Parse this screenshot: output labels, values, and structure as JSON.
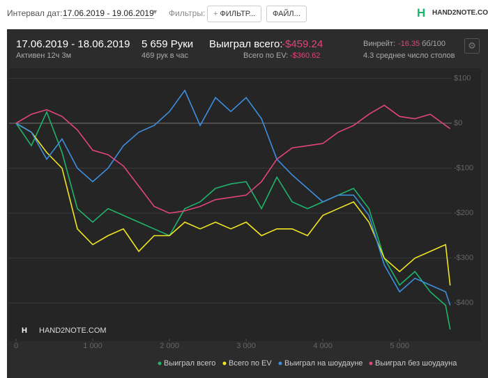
{
  "header": {
    "date_label": "Интервал дат:",
    "date_range": "17.06.2019 - 19.06.2019",
    "filters_label": "Фильтры:",
    "filter_button": "ФИЛЬТР...",
    "file_button": "ФАЙЛ...",
    "logo": "HAND2NOTE.COM"
  },
  "summary": {
    "period": "17.06.2019 - 18.06.2019",
    "active": "Активен 12ч 3м",
    "hands": "5 659 Руки",
    "hands_per_hour": "469 рук в час",
    "won_label": "Выиграл всего:",
    "won_value": "-$459.24",
    "ev_label": "Всего по EV:",
    "ev_value": "-$360.62",
    "winrate_label": "Винрейт:",
    "winrate_value": "-16.35",
    "winrate_unit": "бб/100",
    "tables": "4.3 среднее число столов"
  },
  "watermark": "HAND2NOTE.COM",
  "chart_data": {
    "type": "line",
    "x": [
      0,
      200,
      400,
      600,
      800,
      1000,
      1200,
      1400,
      1600,
      1800,
      2000,
      2200,
      2400,
      2600,
      2800,
      3000,
      3200,
      3400,
      3600,
      3800,
      4000,
      4200,
      4400,
      4600,
      4800,
      5000,
      5200,
      5400,
      5600,
      5659
    ],
    "series": [
      {
        "name": "Выиграл всего",
        "color": "#1fb46c",
        "values": [
          0,
          -50,
          25,
          -65,
          -190,
          -220,
          -190,
          -205,
          -220,
          -235,
          -250,
          -190,
          -175,
          -145,
          -135,
          -130,
          -190,
          -120,
          -175,
          -190,
          -175,
          -160,
          -145,
          -190,
          -300,
          -360,
          -330,
          -375,
          -405,
          -459
        ]
      },
      {
        "name": "Всего по EV",
        "color": "#f0e622",
        "values": [
          0,
          -20,
          -65,
          -100,
          -235,
          -270,
          -250,
          -235,
          -285,
          -250,
          -250,
          -220,
          -235,
          -220,
          -235,
          -220,
          -250,
          -235,
          -235,
          -250,
          -205,
          -190,
          -175,
          -220,
          -300,
          -330,
          -300,
          -285,
          -270,
          -361
        ]
      },
      {
        "name": "Выиграл на шоудауне",
        "color": "#3d8fdf",
        "values": [
          0,
          -20,
          -80,
          -35,
          -100,
          -130,
          -100,
          -50,
          -20,
          -5,
          26,
          73,
          -5,
          57,
          26,
          57,
          10,
          -80,
          -115,
          -145,
          -175,
          -160,
          -160,
          -205,
          -315,
          -375,
          -345,
          -360,
          -375,
          -405
        ]
      },
      {
        "name": "Выиграл без шоудауна",
        "color": "#e2457d",
        "values": [
          0,
          20,
          30,
          15,
          -15,
          -60,
          -70,
          -95,
          -140,
          -185,
          -200,
          -195,
          -185,
          -170,
          -165,
          -160,
          -130,
          -80,
          -55,
          -50,
          -45,
          -20,
          -5,
          20,
          40,
          15,
          10,
          20,
          -5,
          -12
        ]
      }
    ],
    "xlim": [
      0,
      5680
    ],
    "ylim": [
      -480,
      120
    ],
    "xticks": [
      0,
      {
        "value": 1000,
        "label": "1 000"
      },
      {
        "value": 2000,
        "label": "2 000"
      },
      {
        "value": 3000,
        "label": "3 000"
      },
      {
        "value": 4000,
        "label": "4 000"
      },
      {
        "value": 5000,
        "label": "5 000"
      }
    ],
    "yticks": [
      {
        "value": 100,
        "label": "$100"
      },
      {
        "value": 0,
        "label": "$0"
      },
      {
        "value": -100,
        "label": "-$100"
      },
      {
        "value": -200,
        "label": "-$200"
      },
      {
        "value": -300,
        "label": "-$300"
      },
      {
        "value": -400,
        "label": "-$400"
      }
    ],
    "grid": true
  }
}
